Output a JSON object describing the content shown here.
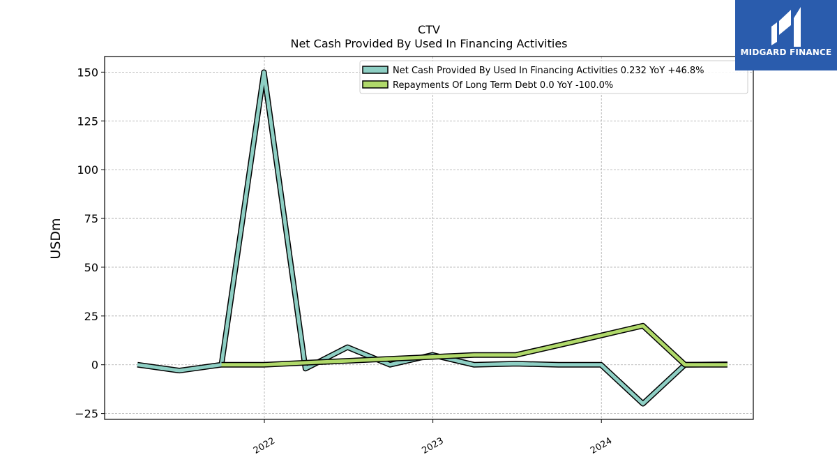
{
  "brand": {
    "name": "MIDGARD FINANCE",
    "bg_color": "#2a5cad"
  },
  "chart_data": {
    "type": "line",
    "title": "CTV",
    "subtitle": "Net Cash Provided By Used In Financing Activities",
    "ylabel": "USDm",
    "xlabel": "",
    "ylim": [
      -28,
      158
    ],
    "xlim": [
      "2021-01-20",
      "2024-11-25"
    ],
    "yticks": [
      -25,
      0,
      25,
      50,
      75,
      100,
      125,
      150
    ],
    "xticks": [
      {
        "label": "2022",
        "date": "2022-01-01"
      },
      {
        "label": "2023",
        "date": "2023-01-01"
      },
      {
        "label": "2024",
        "date": "2024-01-01"
      }
    ],
    "grid": true,
    "legend_position": "top-right",
    "series": [
      {
        "name": "Net Cash Provided By Used In Financing Activities  0.232 YoY +46.8%",
        "color": "#8ecfc4",
        "x": [
          "2021-04-01",
          "2021-07-01",
          "2021-09-30",
          "2021-12-31",
          "2022-03-31",
          "2022-06-30",
          "2022-09-30",
          "2022-12-31",
          "2023-03-31",
          "2023-06-30",
          "2023-09-30",
          "2023-12-31",
          "2024-03-31",
          "2024-06-30",
          "2024-09-30"
        ],
        "values": [
          0,
          -3,
          0,
          150,
          -2,
          9,
          0,
          5,
          0,
          0.5,
          0,
          0,
          -20,
          0,
          0.232
        ]
      },
      {
        "name": "Repayments Of Long Term Debt  0.0 YoY -100.0%",
        "color": "#b0d96a",
        "x": [
          "2021-09-30",
          "2021-12-31",
          "2022-03-31",
          "2022-06-30",
          "2022-09-30",
          "2022-12-31",
          "2023-03-31",
          "2023-06-30",
          "2023-09-30",
          "2023-12-31",
          "2024-03-31",
          "2024-06-30",
          "2024-09-30"
        ],
        "values": [
          0,
          0,
          1,
          2,
          3,
          4,
          5,
          5,
          10,
          15,
          20,
          0,
          0
        ]
      }
    ]
  }
}
